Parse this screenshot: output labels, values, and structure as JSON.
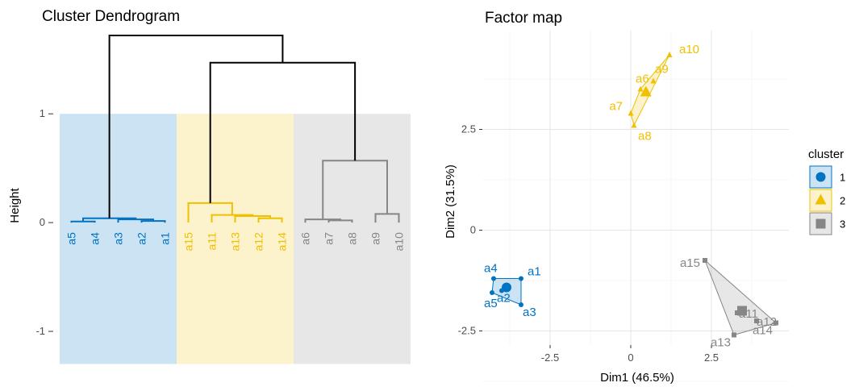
{
  "colors": {
    "cluster1": "#0073C2",
    "cluster2": "#EFC000",
    "cluster3": "#868686",
    "root": "#000000"
  },
  "chart_data": [
    {
      "type": "dendrogram",
      "title": "Cluster Dendrogram",
      "ylabel": "Height",
      "yticks": [
        -1,
        0,
        1
      ],
      "ylim": [
        -1.4,
        1.75
      ],
      "leaves": [
        "a5",
        "a4",
        "a3",
        "a2",
        "a1",
        "a15",
        "a11",
        "a13",
        "a12",
        "a14",
        "a6",
        "a7",
        "a8",
        "a9",
        "a10"
      ],
      "leaf_cluster": [
        1,
        1,
        1,
        1,
        1,
        2,
        2,
        2,
        2,
        2,
        3,
        3,
        3,
        3,
        3
      ],
      "clusters": [
        {
          "id": 1,
          "members": [
            "a5",
            "a4",
            "a3",
            "a2",
            "a1"
          ]
        },
        {
          "id": 2,
          "members": [
            "a15",
            "a11",
            "a13",
            "a12",
            "a14"
          ]
        },
        {
          "id": 3,
          "members": [
            "a6",
            "a7",
            "a8",
            "a9",
            "a10"
          ]
        }
      ],
      "rect_range": [
        -1.3,
        1.0
      ],
      "merges": [
        {
          "l": 1,
          "r": 2,
          "h": 0.01,
          "c": 1
        },
        {
          "l": 4,
          "r": 5,
          "h": 0.015,
          "c": 1
        },
        {
          "l": 3,
          "r": "m2",
          "h": 0.03,
          "c": 1
        },
        {
          "l": "m3",
          "r": "m1",
          "h": 0.04,
          "c": 1
        },
        {
          "l": 9,
          "r": 10,
          "h": 0.04,
          "c": 2
        },
        {
          "l": 8,
          "r": "m5",
          "h": 0.06,
          "c": 2
        },
        {
          "l": 7,
          "r": "m6",
          "h": 0.07,
          "c": 2
        },
        {
          "l": 12,
          "r": 13,
          "h": 0.02,
          "c": 3
        },
        {
          "l": 11,
          "r": "m8",
          "h": 0.03,
          "c": 3
        },
        {
          "l": 14,
          "r": 15,
          "h": 0.08,
          "c": 3
        },
        {
          "l": 6,
          "r": "m7",
          "h": 0.18,
          "c": 2
        },
        {
          "l": "m9",
          "r": "m10",
          "h": 0.57,
          "c": 3
        },
        {
          "l": "m11",
          "r": "m12",
          "h": 1.47,
          "c": 0
        },
        {
          "l": "m4",
          "r": "m13",
          "h": 1.72,
          "c": 0
        }
      ]
    },
    {
      "type": "scatter",
      "title": "Factor map",
      "xlabel": "Dim1 (46.5%)",
      "ylabel": "Dim2 (31.5%)",
      "xlim": [
        -4.6,
        4.9
      ],
      "ylim": [
        -2.85,
        4.95
      ],
      "xticks": [
        -2.5,
        0.0,
        2.5
      ],
      "yticks": [
        -2.5,
        0.0,
        2.5
      ],
      "grid": true,
      "legend": {
        "title": "cluster",
        "entries": [
          "1",
          "2",
          "3"
        ],
        "placement": "right"
      },
      "series": [
        {
          "name": "1",
          "points": [
            {
              "label": "a1",
              "x": -3.4,
              "y": -1.2
            },
            {
              "label": "a2",
              "x": -4.0,
              "y": -1.5
            },
            {
              "label": "a3",
              "x": -3.4,
              "y": -1.85
            },
            {
              "label": "a4",
              "x": -4.25,
              "y": -1.2
            },
            {
              "label": "a5",
              "x": -4.3,
              "y": -1.55
            }
          ],
          "centroid": {
            "x": -3.85,
            "y": -1.42
          },
          "hull": [
            "a4",
            "a1",
            "a3",
            "a5"
          ]
        },
        {
          "name": "2",
          "points": [
            {
              "label": "a10",
              "x": 1.2,
              "y": 4.35
            },
            {
              "label": "a6",
              "x": 0.3,
              "y": 3.5
            },
            {
              "label": "a9",
              "x": 0.7,
              "y": 3.7
            },
            {
              "label": "a7",
              "x": 0.0,
              "y": 2.9
            },
            {
              "label": "a8",
              "x": 0.1,
              "y": 2.6
            }
          ],
          "centroid": {
            "x": 0.47,
            "y": 3.42
          },
          "hull": [
            "a7",
            "a6",
            "a10",
            "a8"
          ]
        },
        {
          "name": "3",
          "points": [
            {
              "label": "a15",
              "x": 2.3,
              "y": -0.75
            },
            {
              "label": "a11",
              "x": 3.3,
              "y": -2.05
            },
            {
              "label": "a12",
              "x": 3.9,
              "y": -2.25
            },
            {
              "label": "a13",
              "x": 3.2,
              "y": -2.6
            },
            {
              "label": "a14",
              "x": 4.5,
              "y": -2.3
            }
          ],
          "centroid": {
            "x": 3.45,
            "y": -2.0
          },
          "hull": [
            "a15",
            "a14",
            "a13"
          ]
        }
      ]
    }
  ]
}
